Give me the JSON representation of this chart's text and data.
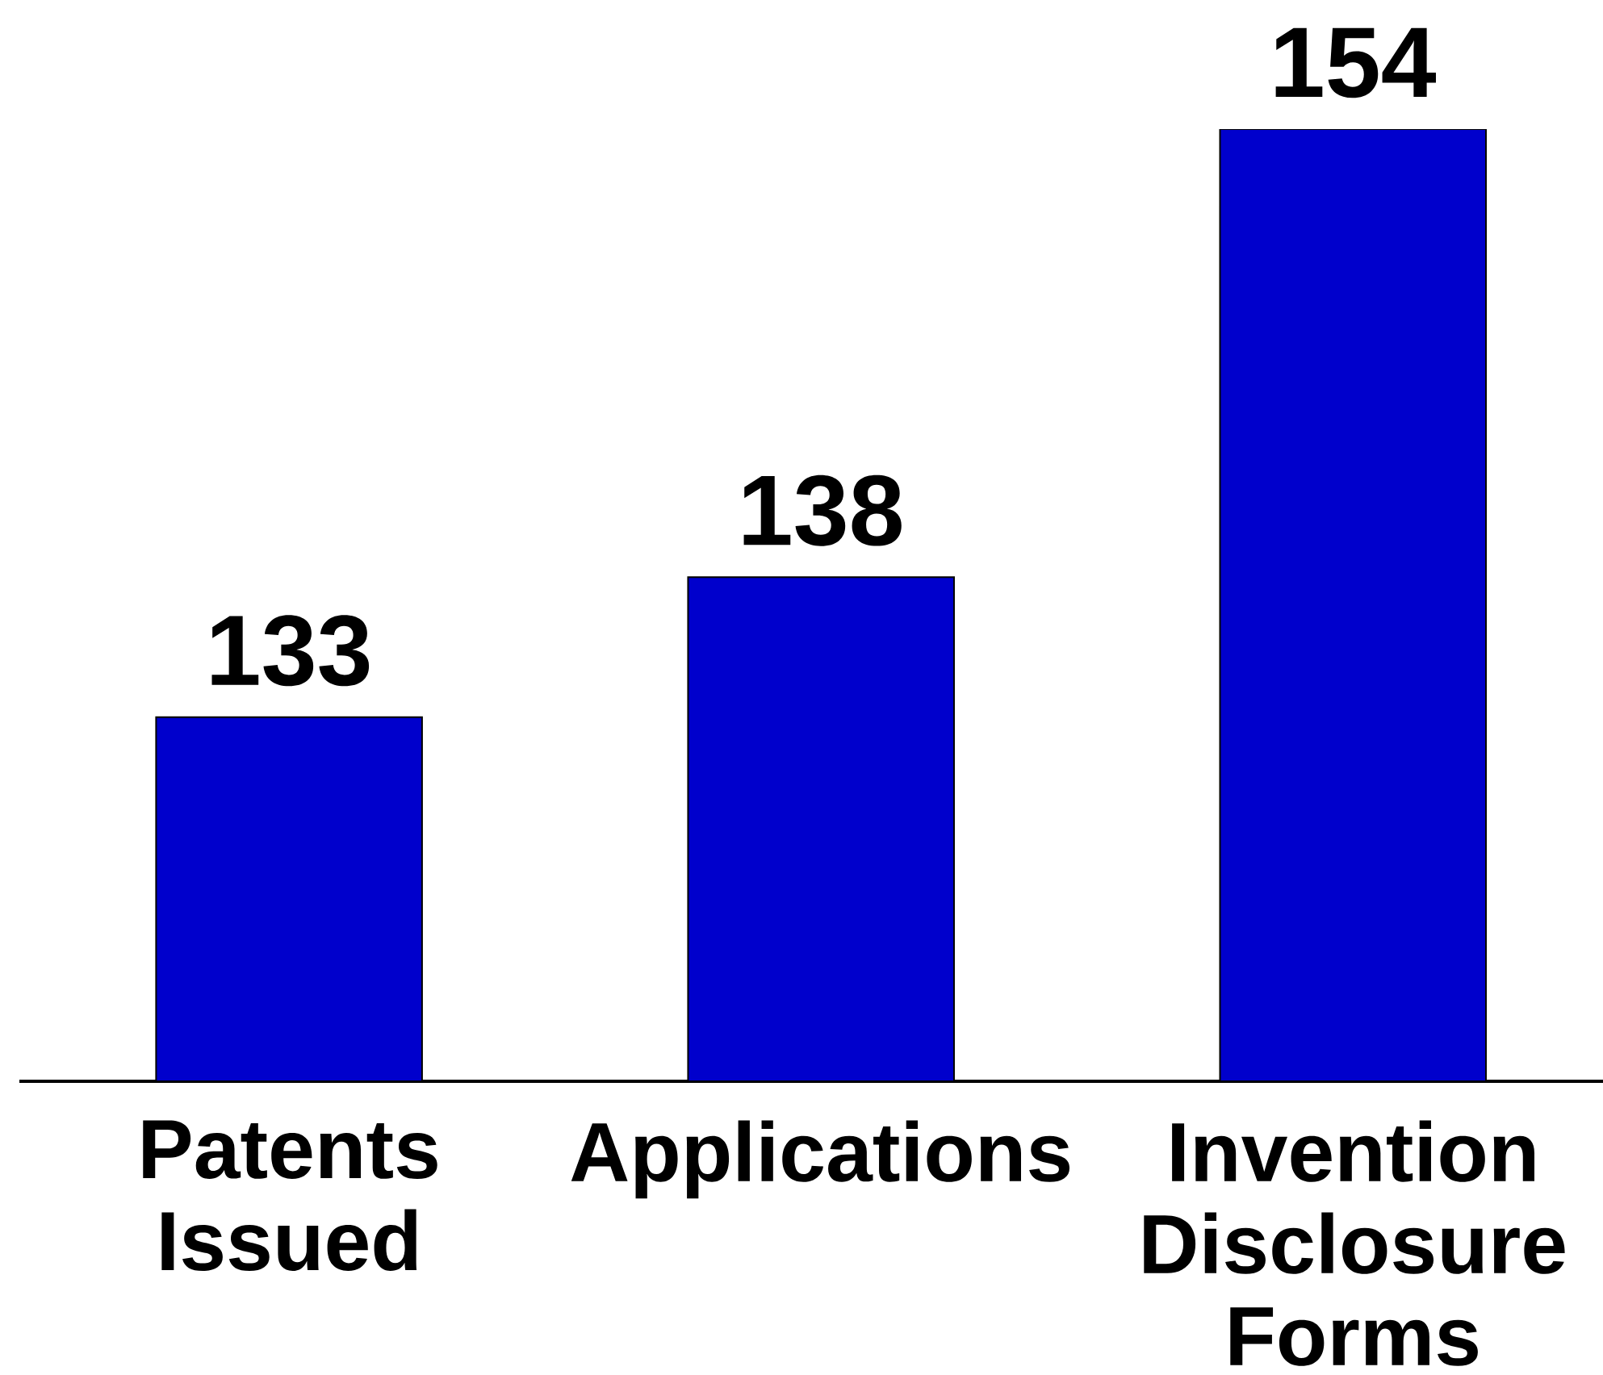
{
  "chart_data": {
    "type": "bar",
    "categories": [
      "Patents Issued",
      "Applications",
      "Invention Disclosure Forms"
    ],
    "values": [
      133,
      138,
      154
    ],
    "color": "#0000cc",
    "ylim": [
      120,
      154
    ],
    "data_labels": true,
    "tick_labels": "x"
  }
}
